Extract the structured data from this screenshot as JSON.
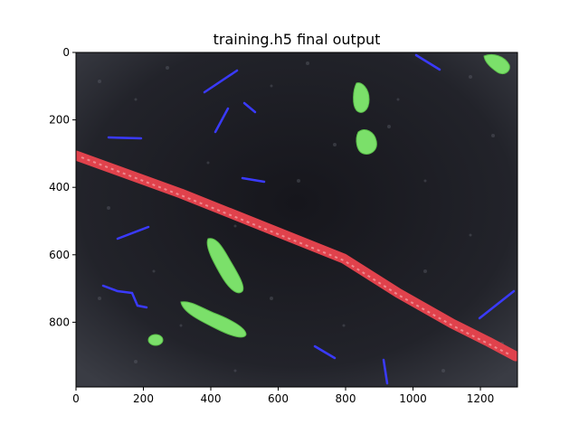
{
  "figure": {
    "title": "training.h5 final output"
  },
  "axes": {
    "x_ticks": [
      "0",
      "200",
      "400",
      "600",
      "800",
      "1000",
      "1200"
    ],
    "y_ticks": [
      "0",
      "200",
      "400",
      "600",
      "800"
    ],
    "x_tick_values": [
      0,
      200,
      400,
      600,
      800,
      1000,
      1200
    ],
    "y_tick_values": [
      0,
      200,
      400,
      600,
      800
    ],
    "x_range": [
      0,
      1310
    ],
    "y_range": [
      0,
      992
    ],
    "y_inverted": true
  },
  "image": {
    "background": "#1c1c22",
    "mask_colors": {
      "red": "#e0424c",
      "green": "#7be06a",
      "blue": "#3a3aff"
    }
  }
}
